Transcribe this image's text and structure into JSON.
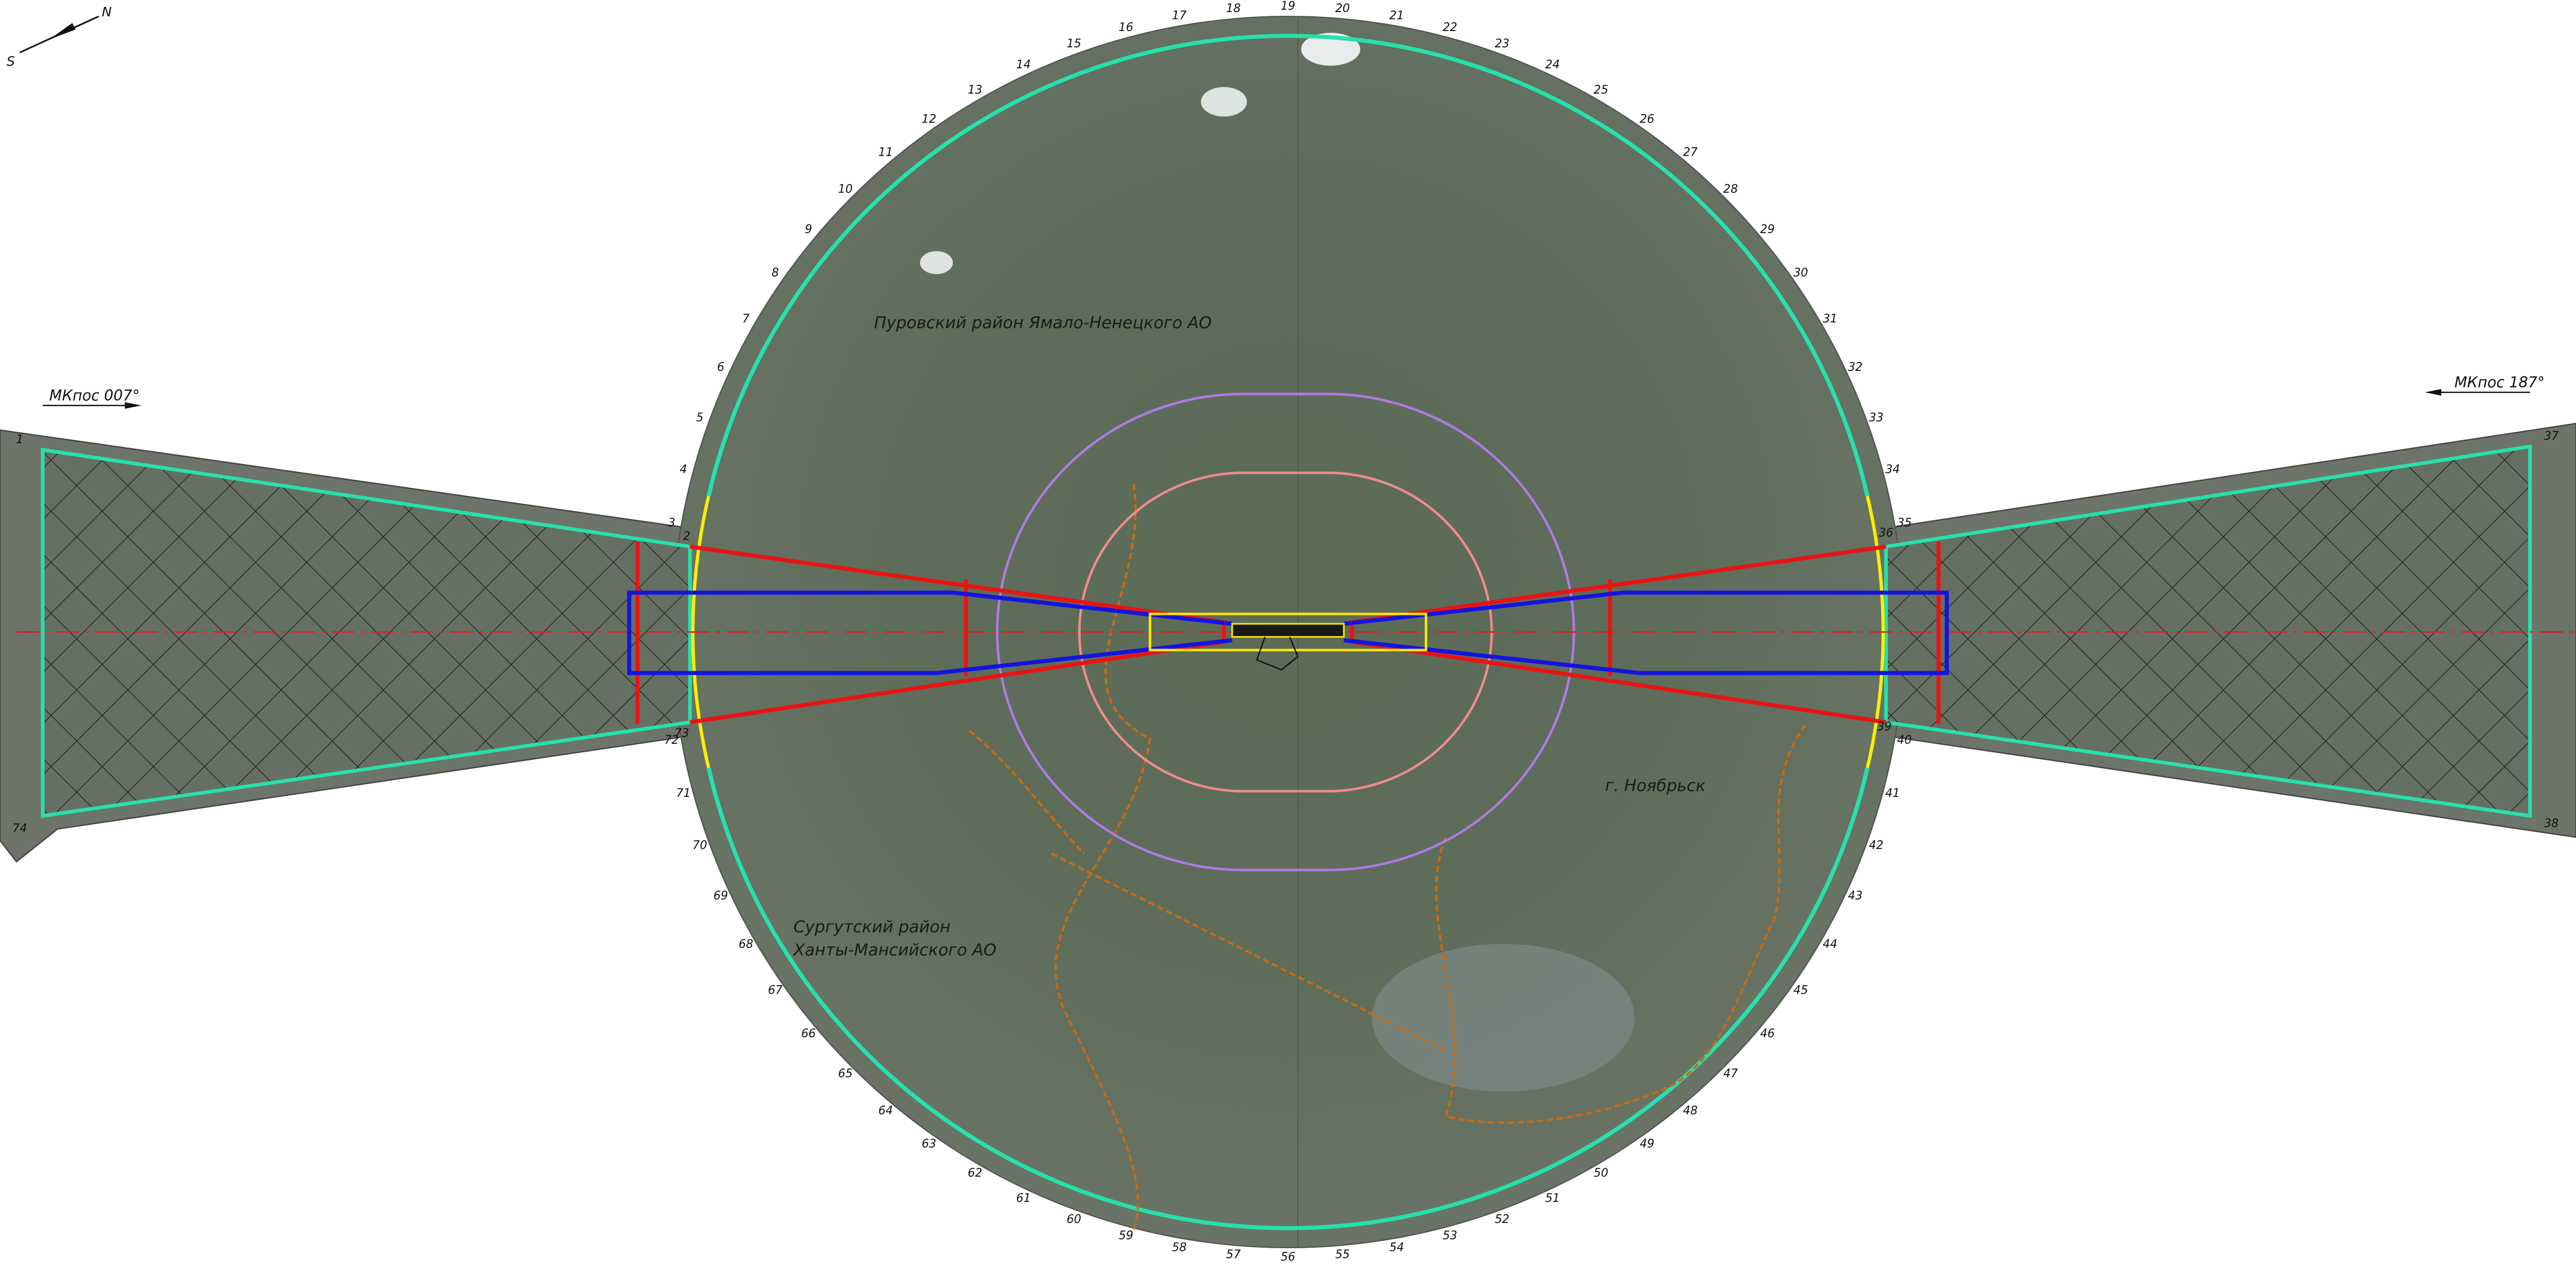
{
  "compass": {
    "north": "N",
    "south": "S"
  },
  "headings": {
    "left": "МКпос 007°",
    "right": "МКпос 187°"
  },
  "regions": {
    "purovsky": "Пуровский район Ямало-Ненецкого АО",
    "noyabrsk": "г. Ноябрьск",
    "surgut_line1": "Сургутский район",
    "surgut_line2": "Ханты-Мансийского АО"
  },
  "points": [
    "1",
    "2",
    "3",
    "4",
    "5",
    "6",
    "7",
    "8",
    "9",
    "10",
    "11",
    "12",
    "13",
    "14",
    "15",
    "16",
    "17",
    "18",
    "19",
    "20",
    "21",
    "22",
    "23",
    "24",
    "25",
    "26",
    "27",
    "28",
    "29",
    "30",
    "31",
    "32",
    "33",
    "34",
    "35",
    "36",
    "37",
    "38",
    "39",
    "40",
    "41",
    "42",
    "43",
    "44",
    "45",
    "46",
    "47",
    "48",
    "49",
    "50",
    "51",
    "52",
    "53",
    "54",
    "55",
    "56",
    "57",
    "58",
    "59",
    "60",
    "61",
    "62",
    "63",
    "64",
    "65",
    "66",
    "67",
    "68",
    "69",
    "70",
    "71",
    "72",
    "73",
    "74"
  ]
}
